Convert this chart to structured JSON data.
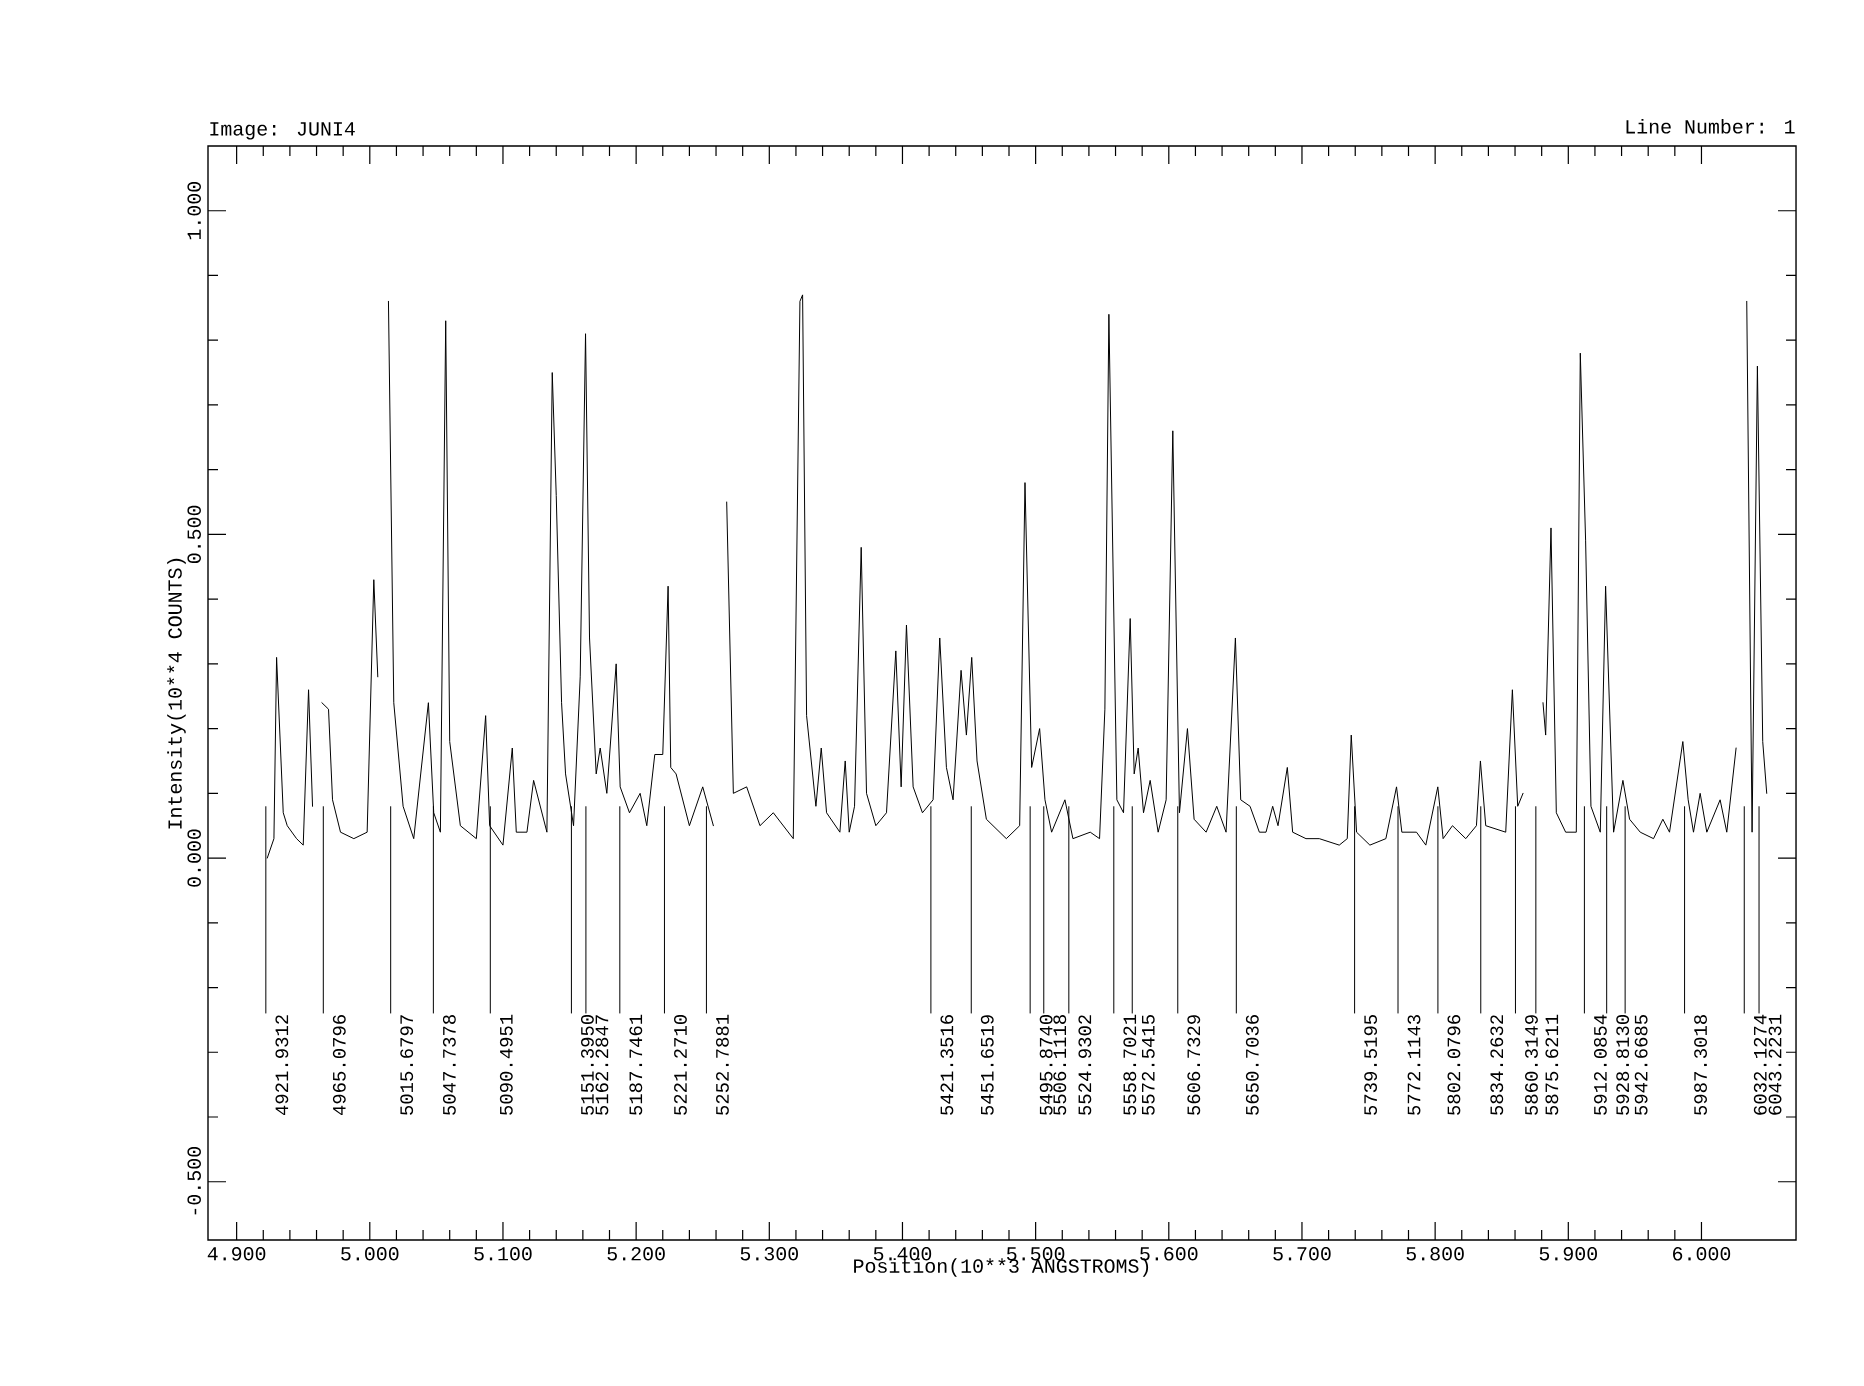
{
  "chart_data": {
    "type": "line",
    "title": "Image: JUNI4",
    "xlabel": "Position(10**3 ANGSTROMS)",
    "ylabel": "Intensity(10**4 COUNTS)",
    "xlim": [
      4.8785,
      6.071
    ],
    "ylim": [
      -0.59,
      1.1
    ],
    "xticks": [
      {
        "value": 4.9,
        "label": "4.900"
      },
      {
        "value": 5.0,
        "label": "5.000"
      },
      {
        "value": 5.1,
        "label": "5.100"
      },
      {
        "value": 5.2,
        "label": "5.200"
      },
      {
        "value": 5.3,
        "label": "5.300"
      },
      {
        "value": 5.4,
        "label": "5.400"
      },
      {
        "value": 5.5,
        "label": "5.500"
      },
      {
        "value": 5.6,
        "label": "5.600"
      },
      {
        "value": 5.7,
        "label": "5.700"
      },
      {
        "value": 5.8,
        "label": "5.800"
      },
      {
        "value": 5.9,
        "label": "5.900"
      },
      {
        "value": 6.0,
        "label": "6.000"
      }
    ],
    "yticks": [
      {
        "value": -0.5,
        "label": "-0.500"
      },
      {
        "value": 0,
        "label": "0.000"
      },
      {
        "value": 0.5,
        "label": "0.500"
      },
      {
        "value": 1.0,
        "label": "1.000"
      }
    ],
    "series": [
      {
        "color": "#000000",
        "x": [
          4.923,
          4.928,
          4.93,
          4.935,
          4.938,
          4.945,
          4.95,
          4.954,
          4.957,
          4.96,
          4.964,
          4.969,
          4.972,
          4.978,
          4.988,
          4.998,
          5.003,
          5.006,
          5.009,
          5.014,
          5.018,
          5.025,
          5.033,
          5.044,
          5.048,
          5.053,
          5.057,
          5.06,
          5.068,
          5.08,
          5.087,
          5.09,
          5.1,
          5.107,
          5.11,
          5.118,
          5.123,
          5.133,
          5.137,
          5.14,
          5.144,
          5.147,
          5.153,
          5.158,
          5.162,
          5.165,
          5.17,
          5.173,
          5.178,
          5.185,
          5.188,
          5.195,
          5.203,
          5.208,
          5.214,
          5.22,
          5.224,
          5.226,
          5.23,
          5.24,
          5.25,
          5.258,
          5.264,
          5.268,
          5.273,
          5.283,
          5.293,
          5.303,
          5.318,
          5.323,
          5.325,
          5.328,
          5.335,
          5.339,
          5.343,
          5.353,
          5.357,
          5.36,
          5.364,
          5.369,
          5.373,
          5.38,
          5.388,
          5.395,
          5.399,
          5.403,
          5.408,
          5.415,
          5.423,
          5.428,
          5.433,
          5.438,
          5.444,
          5.448,
          5.452,
          5.456,
          5.463,
          5.478,
          5.488,
          5.492,
          5.497,
          5.503,
          5.507,
          5.512,
          5.522,
          5.528,
          5.541,
          5.548,
          5.552,
          5.555,
          5.561,
          5.566,
          5.571,
          5.574,
          5.577,
          5.581,
          5.586,
          5.592,
          5.598,
          5.603,
          5.608,
          5.614,
          5.619,
          5.628,
          5.636,
          5.643,
          5.65,
          5.654,
          5.661,
          5.668,
          5.673,
          5.678,
          5.682,
          5.689,
          5.693,
          5.703,
          5.713,
          5.728,
          5.734,
          5.737,
          5.741,
          5.751,
          5.763,
          5.771,
          5.775,
          5.786,
          5.793,
          5.802,
          5.806,
          5.813,
          5.823,
          5.831,
          5.834,
          5.838,
          5.853,
          5.858,
          5.862,
          5.866,
          5.871,
          5.876,
          5.881,
          5.883,
          5.887,
          5.891,
          5.898,
          5.906,
          5.909,
          5.913,
          5.917,
          5.924,
          5.928,
          5.934,
          5.941,
          5.946,
          5.954,
          5.964,
          5.971,
          5.976,
          5.986,
          5.99,
          5.994,
          5.999,
          6.004,
          6.014,
          6.019,
          6.026,
          6.029,
          6.034,
          6.038,
          6.042,
          6.046,
          6.049
        ],
        "values": [
          0.0,
          0.03,
          0.31,
          0.07,
          0.05,
          0.03,
          0.02,
          0.26,
          0.08,
          null,
          0.24,
          0.23,
          0.09,
          0.04,
          0.03,
          0.04,
          0.43,
          0.28,
          null,
          0.86,
          0.24,
          0.08,
          0.03,
          0.24,
          0.07,
          0.04,
          0.83,
          0.18,
          0.05,
          0.03,
          0.22,
          0.05,
          0.02,
          0.17,
          0.04,
          0.04,
          0.12,
          0.04,
          0.75,
          0.56,
          0.24,
          0.13,
          0.05,
          0.28,
          0.81,
          0.34,
          0.13,
          0.17,
          0.1,
          0.3,
          0.11,
          0.07,
          0.1,
          0.05,
          0.16,
          0.16,
          0.42,
          0.14,
          0.13,
          0.05,
          0.11,
          0.05,
          null,
          0.55,
          0.1,
          0.11,
          0.05,
          0.07,
          0.03,
          0.86,
          0.87,
          0.22,
          0.08,
          0.17,
          0.07,
          0.04,
          0.15,
          0.04,
          0.08,
          0.48,
          0.1,
          0.05,
          0.07,
          0.32,
          0.11,
          0.36,
          0.11,
          0.07,
          0.09,
          0.34,
          0.14,
          0.09,
          0.29,
          0.19,
          0.31,
          0.15,
          0.06,
          0.03,
          0.05,
          0.58,
          0.14,
          0.2,
          0.09,
          0.04,
          0.09,
          0.03,
          0.04,
          0.03,
          0.23,
          0.84,
          0.09,
          0.07,
          0.37,
          0.13,
          0.17,
          0.07,
          0.12,
          0.04,
          0.09,
          0.66,
          0.07,
          0.2,
          0.06,
          0.04,
          0.08,
          0.04,
          0.34,
          0.09,
          0.08,
          0.04,
          0.04,
          0.08,
          0.05,
          0.14,
          0.04,
          0.03,
          0.03,
          0.02,
          0.03,
          0.19,
          0.04,
          0.02,
          0.03,
          0.11,
          0.04,
          0.04,
          0.02,
          0.11,
          0.03,
          0.05,
          0.03,
          0.05,
          0.15,
          0.05,
          0.04,
          0.26,
          0.08,
          0.1,
          null,
          null,
          0.24,
          0.19,
          0.51,
          0.07,
          0.04,
          0.04,
          0.78,
          0.49,
          0.08,
          0.04,
          0.42,
          0.04,
          0.12,
          0.06,
          0.04,
          0.03,
          0.06,
          0.04,
          0.18,
          0.09,
          0.04,
          0.1,
          0.04,
          0.09,
          0.04,
          0.17,
          null,
          0.86,
          0.04,
          0.76,
          0.18,
          0.1
        ]
      }
    ],
    "annotations": [
      "Line Number: 1"
    ],
    "ref_lines": [
      {
        "axis": "x",
        "value": 4.9219312,
        "label": "4921.9312"
      },
      {
        "axis": "x",
        "value": 4.9650796,
        "label": "4965.0796"
      },
      {
        "axis": "x",
        "value": 5.0156797,
        "label": "5015.6797"
      },
      {
        "axis": "x",
        "value": 5.0477378,
        "label": "5047.7378"
      },
      {
        "axis": "x",
        "value": 5.0904951,
        "label": "5090.4951"
      },
      {
        "axis": "x",
        "value": 5.151395,
        "label": "5151.3950"
      },
      {
        "axis": "x",
        "value": 5.1622847,
        "label": "5162.2847"
      },
      {
        "axis": "x",
        "value": 5.1877461,
        "label": "5187.7461"
      },
      {
        "axis": "x",
        "value": 5.221271,
        "label": "5221.2710"
      },
      {
        "axis": "x",
        "value": 5.2527881,
        "label": "5252.7881"
      },
      {
        "axis": "x",
        "value": 5.4213516,
        "label": "5421.3516"
      },
      {
        "axis": "x",
        "value": 5.4516519,
        "label": "5451.6519"
      },
      {
        "axis": "x",
        "value": 5.495874,
        "label": "5495.8740"
      },
      {
        "axis": "x",
        "value": 5.5061118,
        "label": "5506.1118"
      },
      {
        "axis": "x",
        "value": 5.5249302,
        "label": "5524.9302"
      },
      {
        "axis": "x",
        "value": 5.5587021,
        "label": "5558.7021"
      },
      {
        "axis": "x",
        "value": 5.5725415,
        "label": "5572.5415"
      },
      {
        "axis": "x",
        "value": 5.6067329,
        "label": "5606.7329"
      },
      {
        "axis": "x",
        "value": 5.6507036,
        "label": "5650.7036"
      },
      {
        "axis": "x",
        "value": 5.7395195,
        "label": "5739.5195"
      },
      {
        "axis": "x",
        "value": 5.7721143,
        "label": "5772.1143"
      },
      {
        "axis": "x",
        "value": 5.8020796,
        "label": "5802.0796"
      },
      {
        "axis": "x",
        "value": 5.8342632,
        "label": "5834.2632"
      },
      {
        "axis": "x",
        "value": 5.8603149,
        "label": "5860.3149"
      },
      {
        "axis": "x",
        "value": 5.8756211,
        "label": "5875.6211"
      },
      {
        "axis": "x",
        "value": 5.9120854,
        "label": "5912.0854"
      },
      {
        "axis": "x",
        "value": 5.928813,
        "label": "5928.8130"
      },
      {
        "axis": "x",
        "value": 5.9426685,
        "label": "5942.6685"
      },
      {
        "axis": "x",
        "value": 5.9873018,
        "label": "5987.3018"
      },
      {
        "axis": "x",
        "value": 6.0321274,
        "label": "6032.1274"
      },
      {
        "axis": "x",
        "value": 6.0432231,
        "label": "6043.2231"
      }
    ]
  }
}
